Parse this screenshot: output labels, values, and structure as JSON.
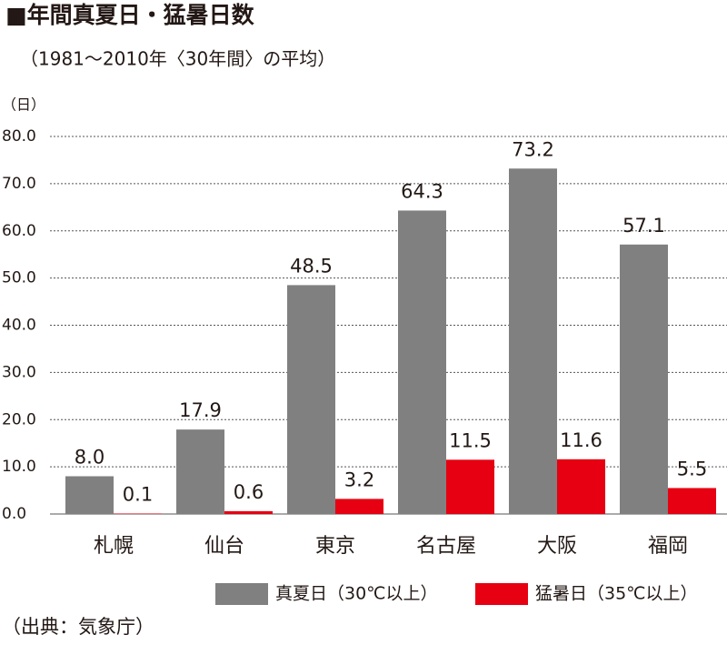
{
  "chart_data": {
    "type": "bar",
    "title": "■年間真夏日・猛暑日数",
    "subtitle": "（1981～2010年〈30年間〉の平均）",
    "y_unit": "（日）",
    "source": "（出典：気象庁）",
    "categories": [
      "札幌",
      "仙台",
      "東京",
      "名古屋",
      "大阪",
      "福岡"
    ],
    "series": [
      {
        "name": "真夏日（30℃以上）",
        "color": "#808080",
        "values": [
          8.0,
          17.9,
          48.5,
          64.3,
          73.2,
          57.1
        ],
        "value_labels": [
          "8.0",
          "17.9",
          "48.5",
          "64.3",
          "73.2",
          "57.1"
        ]
      },
      {
        "name": "猛暑日（35℃以上）",
        "color": "#e60012",
        "values": [
          0.1,
          0.6,
          3.2,
          11.5,
          11.6,
          5.5
        ],
        "value_labels": [
          "0.1",
          "0.6",
          "3.2",
          "11.5",
          "11.6",
          "5.5"
        ]
      }
    ],
    "ylim": [
      0,
      80
    ],
    "yticks": [
      {
        "value": 0,
        "label": "0.0"
      },
      {
        "value": 10,
        "label": "10.0"
      },
      {
        "value": 20,
        "label": "20.0"
      },
      {
        "value": 30,
        "label": "30.0"
      },
      {
        "value": 40,
        "label": "40.0"
      },
      {
        "value": 50,
        "label": "50.0"
      },
      {
        "value": 60,
        "label": "60.0"
      },
      {
        "value": 70,
        "label": "70.0"
      },
      {
        "value": 80,
        "label": "80.0"
      }
    ],
    "grid": true
  }
}
